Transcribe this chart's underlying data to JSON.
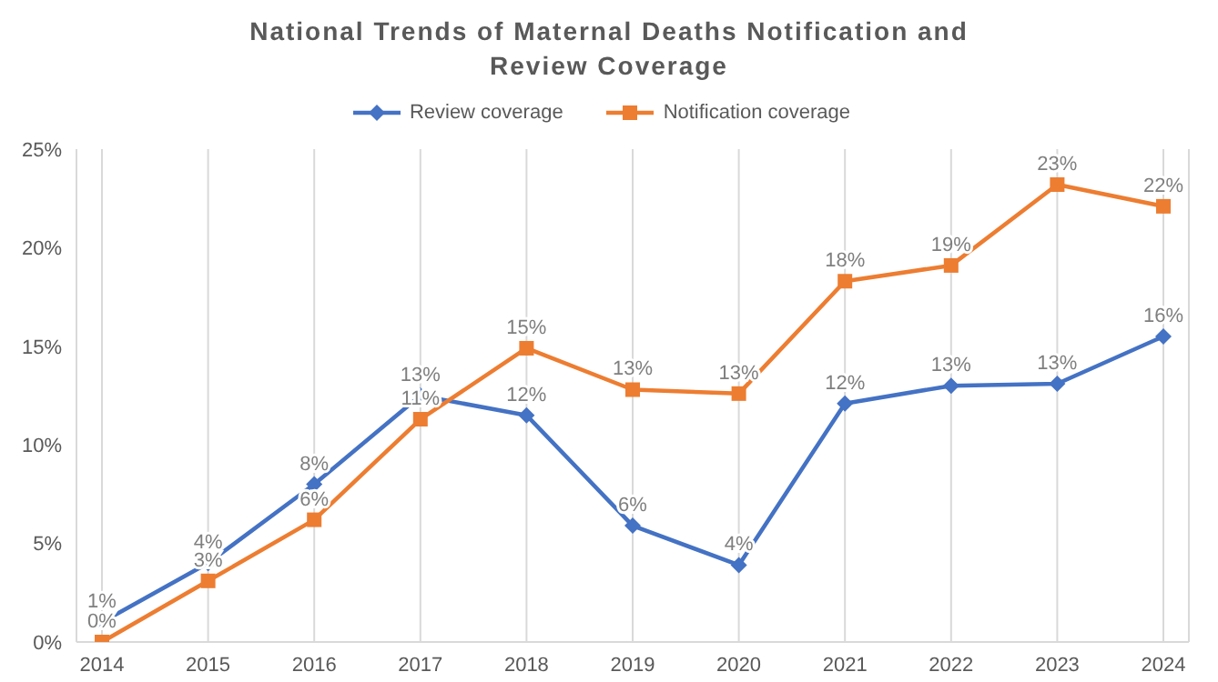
{
  "chart_data": {
    "type": "line",
    "title": "National Trends of Maternal Deaths Notification and Review Coverage",
    "categories": [
      "2014",
      "2015",
      "2016",
      "2017",
      "2018",
      "2019",
      "2020",
      "2021",
      "2022",
      "2023",
      "2024"
    ],
    "series": [
      {
        "name": "Review coverage",
        "color": "#4472c4",
        "marker": "diamond",
        "values": [
          1,
          4,
          8,
          12.5,
          11.5,
          5.9,
          3.9,
          12.1,
          13,
          13.1,
          15.5
        ],
        "value_labels": [
          "1%",
          "4%",
          "8%",
          "13%",
          "12%",
          "6%",
          "4%",
          "12%",
          "13%",
          "13%",
          "16%"
        ]
      },
      {
        "name": "Notification coverage",
        "color": "#ed7d31",
        "marker": "square",
        "values": [
          0,
          3.1,
          6.2,
          11.3,
          14.9,
          12.8,
          12.6,
          18.3,
          19.1,
          23.2,
          22.1
        ],
        "value_labels": [
          "0%",
          "3%",
          "6%",
          "11%",
          "15%",
          "13%",
          "13%",
          "18%",
          "19%",
          "23%",
          "22%"
        ]
      }
    ],
    "ylim": [
      0,
      25
    ],
    "yticks": [
      {
        "value": 0,
        "label": "0%"
      },
      {
        "value": 5,
        "label": "5%"
      },
      {
        "value": 10,
        "label": "10%"
      },
      {
        "value": 15,
        "label": "15%"
      },
      {
        "value": 20,
        "label": "20%"
      },
      {
        "value": 25,
        "label": "25%"
      }
    ],
    "grid": "x",
    "legend": "top",
    "line_style": "solid"
  }
}
